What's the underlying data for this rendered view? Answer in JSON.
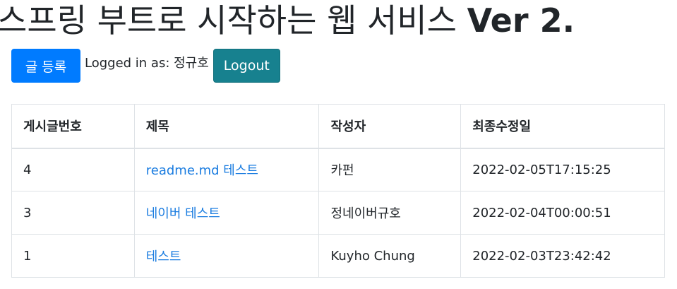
{
  "page_title": {
    "main": "스프링 부트로 시작하는 웹 서비스 ",
    "version": "Ver 2."
  },
  "toolbar": {
    "register_button_label": "글 등록",
    "logged_in_prefix": "Logged in as: ",
    "user_name": "정규호",
    "logout_button_label": "Logout"
  },
  "colors": {
    "primary_button": "#007bff",
    "logout_button": "#17818f",
    "link": "#1a7ce0",
    "table_border": "#dee2e6"
  },
  "table": {
    "headers": {
      "id": "게시글번호",
      "title": "제목",
      "author": "작성자",
      "modified": "최종수정일"
    },
    "rows": [
      {
        "id": "4",
        "title": "readme.md 테스트",
        "author": "카펀",
        "modified": "2022-02-05T17:15:25"
      },
      {
        "id": "3",
        "title": "네이버 테스트",
        "author": "정네이버규호",
        "modified": "2022-02-04T00:00:51"
      },
      {
        "id": "1",
        "title": "테스트",
        "author": "Kuyho Chung",
        "modified": "2022-02-03T23:42:42"
      }
    ]
  }
}
